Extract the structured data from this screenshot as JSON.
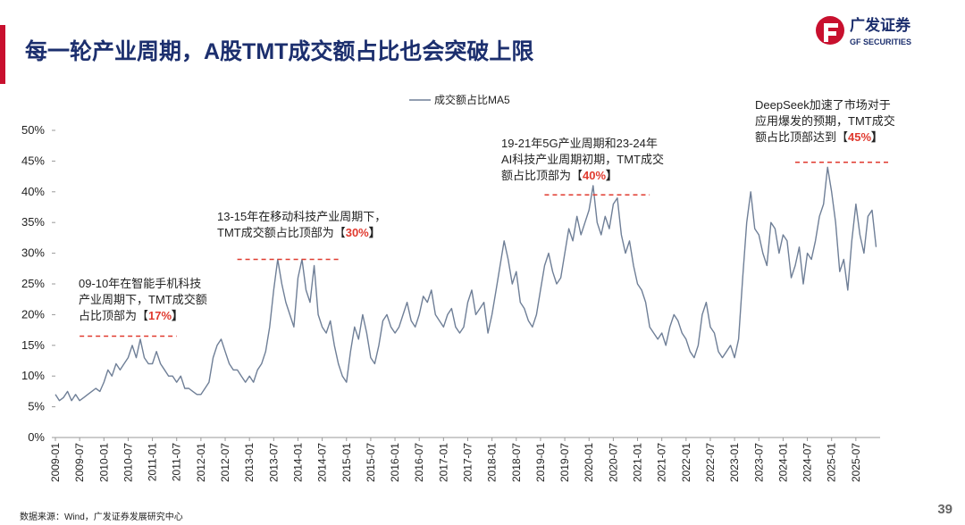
{
  "title": "每一轮产业周期，A股TMT成交额占比也会突破上限",
  "logo": {
    "name": "广发证券",
    "subname": "GF SECURITIES"
  },
  "source": "数据来源：Wind，广发证券发展研究中心",
  "page_number": "39",
  "chart_data": {
    "type": "line",
    "x": [
      "2009-01",
      "2009-02",
      "2009-03",
      "2009-04",
      "2009-05",
      "2009-06",
      "2009-07",
      "2009-08",
      "2009-09",
      "2009-10",
      "2009-11",
      "2009-12",
      "2010-01",
      "2010-02",
      "2010-03",
      "2010-04",
      "2010-05",
      "2010-06",
      "2010-07",
      "2010-08",
      "2010-09",
      "2010-10",
      "2010-11",
      "2010-12",
      "2011-01",
      "2011-02",
      "2011-03",
      "2011-04",
      "2011-05",
      "2011-06",
      "2011-07",
      "2011-08",
      "2011-09",
      "2011-10",
      "2011-11",
      "2011-12",
      "2012-01",
      "2012-02",
      "2012-03",
      "2012-04",
      "2012-05",
      "2012-06",
      "2012-07",
      "2012-08",
      "2012-09",
      "2012-10",
      "2012-11",
      "2012-12",
      "2013-01",
      "2013-02",
      "2013-03",
      "2013-04",
      "2013-05",
      "2013-06",
      "2013-07",
      "2013-08",
      "2013-09",
      "2013-10",
      "2013-11",
      "2013-12",
      "2014-01",
      "2014-02",
      "2014-03",
      "2014-04",
      "2014-05",
      "2014-06",
      "2014-07",
      "2014-08",
      "2014-09",
      "2014-10",
      "2014-11",
      "2014-12",
      "2015-01",
      "2015-02",
      "2015-03",
      "2015-04",
      "2015-05",
      "2015-06",
      "2015-07",
      "2015-08",
      "2015-09",
      "2015-10",
      "2015-11",
      "2015-12",
      "2016-01",
      "2016-02",
      "2016-03",
      "2016-04",
      "2016-05",
      "2016-06",
      "2016-07",
      "2016-08",
      "2016-09",
      "2016-10",
      "2016-11",
      "2016-12",
      "2017-01",
      "2017-02",
      "2017-03",
      "2017-04",
      "2017-05",
      "2017-06",
      "2017-07",
      "2017-08",
      "2017-09",
      "2017-10",
      "2017-11",
      "2017-12",
      "2018-01",
      "2018-02",
      "2018-03",
      "2018-04",
      "2018-05",
      "2018-06",
      "2018-07",
      "2018-08",
      "2018-09",
      "2018-10",
      "2018-11",
      "2018-12",
      "2019-01",
      "2019-02",
      "2019-03",
      "2019-04",
      "2019-05",
      "2019-06",
      "2019-07",
      "2019-08",
      "2019-09",
      "2019-10",
      "2019-11",
      "2019-12",
      "2020-01",
      "2020-02",
      "2020-03",
      "2020-04",
      "2020-05",
      "2020-06",
      "2020-07",
      "2020-08",
      "2020-09",
      "2020-10",
      "2020-11",
      "2020-12",
      "2021-01",
      "2021-02",
      "2021-03",
      "2021-04",
      "2021-05",
      "2021-06",
      "2021-07",
      "2021-08",
      "2021-09",
      "2021-10",
      "2021-11",
      "2021-12",
      "2022-01",
      "2022-02",
      "2022-03",
      "2022-04",
      "2022-05",
      "2022-06",
      "2022-07",
      "2022-08",
      "2022-09",
      "2022-10",
      "2022-11",
      "2022-12",
      "2023-01",
      "2023-02",
      "2023-03",
      "2023-04",
      "2023-05",
      "2023-06",
      "2023-07",
      "2023-08",
      "2023-09",
      "2023-10",
      "2023-11",
      "2023-12",
      "2024-01",
      "2024-02",
      "2024-03",
      "2024-04",
      "2024-05",
      "2024-06",
      "2024-07",
      "2024-08",
      "2024-09",
      "2024-10",
      "2024-11",
      "2024-12",
      "2025-01",
      "2025-02",
      "2025-03",
      "2025-04",
      "2025-05",
      "2025-06",
      "2025-07",
      "2025-08",
      "2025-09",
      "2025-10",
      "2025-11",
      "2025-12"
    ],
    "series": [
      {
        "name": "成交额占比MA5",
        "color": "#6f7f97",
        "values": [
          7,
          6,
          6.5,
          7.5,
          6,
          7,
          6,
          6.5,
          7,
          7.5,
          8,
          7.5,
          9,
          11,
          10,
          12,
          11,
          12,
          13,
          15,
          13,
          16,
          13,
          12,
          12,
          14,
          12,
          11,
          10,
          10,
          9,
          10,
          8,
          8,
          7.5,
          7,
          7,
          8,
          9,
          13,
          15,
          16,
          14,
          12,
          11,
          11,
          10,
          9,
          10,
          9,
          11,
          12,
          14,
          18,
          24,
          29,
          25,
          22,
          20,
          18,
          26,
          29,
          24,
          22,
          28,
          20,
          18,
          17,
          19,
          15,
          12,
          10,
          9,
          14,
          18,
          16,
          20,
          17,
          13,
          12,
          15,
          19,
          20,
          18,
          17,
          18,
          20,
          22,
          19,
          18,
          20,
          23,
          22,
          24,
          20,
          19,
          18,
          20,
          21,
          18,
          17,
          18,
          22,
          24,
          20,
          21,
          22,
          17,
          20,
          24,
          28,
          32,
          29,
          25,
          27,
          22,
          21,
          19,
          18,
          20,
          24,
          28,
          30,
          27,
          25,
          26,
          30,
          34,
          32,
          36,
          33,
          35,
          37,
          41,
          35,
          33,
          36,
          34,
          38,
          39,
          33,
          30,
          32,
          28,
          25,
          24,
          22,
          18,
          17,
          16,
          17,
          15,
          18,
          20,
          19,
          17,
          16,
          14,
          13,
          15,
          20,
          22,
          18,
          17,
          14,
          13,
          14,
          15,
          13,
          16,
          26,
          35,
          40,
          34,
          33,
          30,
          28,
          35,
          34,
          30,
          33,
          32,
          26,
          28,
          31,
          25,
          30,
          29,
          32,
          36,
          38,
          44,
          40,
          35,
          27,
          29,
          24,
          32,
          38,
          33,
          30,
          36,
          37,
          31
        ]
      }
    ],
    "xlim": [
      "2009-01",
      "2026-01"
    ],
    "xticks": [
      "2009-01",
      "2009-07",
      "2010-01",
      "2010-07",
      "2011-01",
      "2011-07",
      "2012-01",
      "2012-07",
      "2013-01",
      "2013-07",
      "2014-01",
      "2014-07",
      "2015-01",
      "2015-07",
      "2016-01",
      "2016-07",
      "2017-01",
      "2017-07",
      "2018-01",
      "2018-07",
      "2019-01",
      "2019-07",
      "2020-01",
      "2020-07",
      "2021-01",
      "2021-07",
      "2022-01",
      "2022-07",
      "2023-01",
      "2023-07",
      "2024-01",
      "2024-07",
      "2025-01",
      "2025-07"
    ],
    "ylim": [
      0,
      50
    ],
    "yticks": [
      {
        "value": 0,
        "label": "0%"
      },
      {
        "value": 5,
        "label": "5%"
      },
      {
        "value": 10,
        "label": "10%"
      },
      {
        "value": 15,
        "label": "15%"
      },
      {
        "value": 20,
        "label": "20%"
      },
      {
        "value": 25,
        "label": "25%"
      },
      {
        "value": 30,
        "label": "30%"
      },
      {
        "value": 35,
        "label": "35%"
      },
      {
        "value": 40,
        "label": "40%"
      },
      {
        "value": 45,
        "label": "45%"
      },
      {
        "value": 50,
        "label": "50%"
      }
    ],
    "annotations": [
      {
        "lines": [
          "09-10年在智能手机科技",
          "产业周期下，TMT成交额",
          "占比顶部为【"
        ],
        "highlight": "17%",
        "suffix": "】",
        "level": 16.5,
        "x_range": [
          "2009-07",
          "2011-07"
        ]
      },
      {
        "lines": [
          "13-15年在移动科技产业周期下，",
          "TMT成交额占比顶部为【"
        ],
        "highlight": "30%",
        "suffix": "】",
        "level": 29,
        "x_range": [
          "2012-10",
          "2014-11"
        ]
      },
      {
        "lines": [
          "19-21年5G产业周期和23-24年",
          "AI科技产业周期初期，TMT成交",
          "额占比顶部为【"
        ],
        "highlight": "40%",
        "suffix": "】",
        "level": 39.5,
        "x_range": [
          "2019-02",
          "2021-04"
        ]
      },
      {
        "lines": [
          "DeepSeek加速了市场对于",
          "应用爆发的预期，TMT成交",
          "额占比顶部达到【"
        ],
        "highlight": "45%",
        "suffix": "】",
        "level": 44.8,
        "x_range": [
          "2024-04",
          "2026-03"
        ]
      }
    ]
  }
}
